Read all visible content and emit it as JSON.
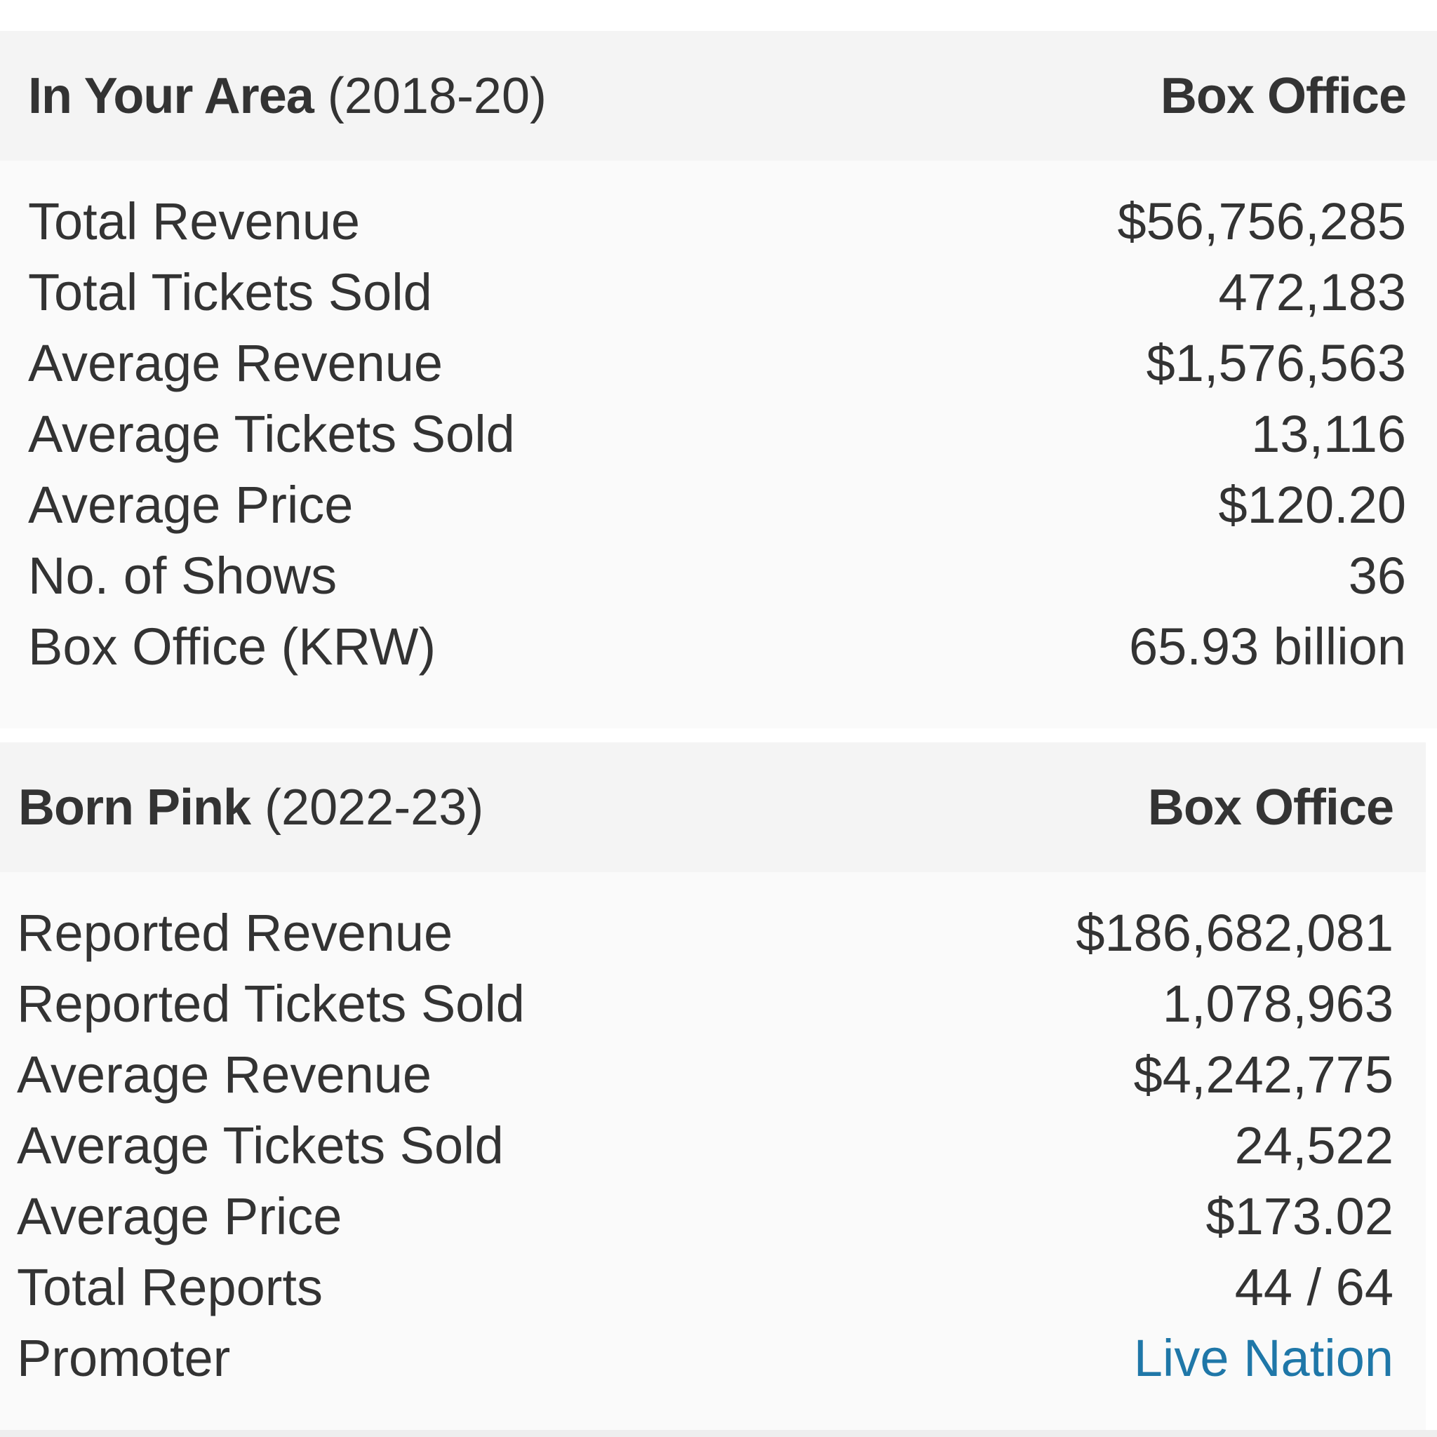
{
  "tours": [
    {
      "name": "In Your Area",
      "years": "(2018-20)",
      "column_header": "Box Office",
      "rows": [
        {
          "label": "Total Revenue",
          "value": "$56,756,285"
        },
        {
          "label": "Total Tickets Sold",
          "value": "472,183"
        },
        {
          "label": "Average Revenue",
          "value": "$1,576,563"
        },
        {
          "label": "Average Tickets Sold",
          "value": "13,116"
        },
        {
          "label": "Average Price",
          "value": "$120.20"
        },
        {
          "label": "No. of Shows",
          "value": "36"
        },
        {
          "label": "Box Office (KRW)",
          "value": "65.93 billion"
        }
      ]
    },
    {
      "name": "Born Pink",
      "years": "(2022-23)",
      "column_header": "Box Office",
      "rows": [
        {
          "label": "Reported Revenue",
          "value": "$186,682,081"
        },
        {
          "label": "Reported Tickets Sold",
          "value": "1,078,963"
        },
        {
          "label": "Average Revenue",
          "value": "$4,242,775"
        },
        {
          "label": "Average Tickets Sold",
          "value": "24,522"
        },
        {
          "label": "Average Price",
          "value": "$173.02"
        },
        {
          "label": "Total Reports",
          "value": "44 / 64"
        },
        {
          "label": "Promoter",
          "value": "Live Nation"
        }
      ]
    }
  ],
  "colors": {
    "text": "#333333",
    "link": "#1f77a8",
    "header_bg": "#f4f4f4",
    "panel_bg": "#fafafa"
  }
}
